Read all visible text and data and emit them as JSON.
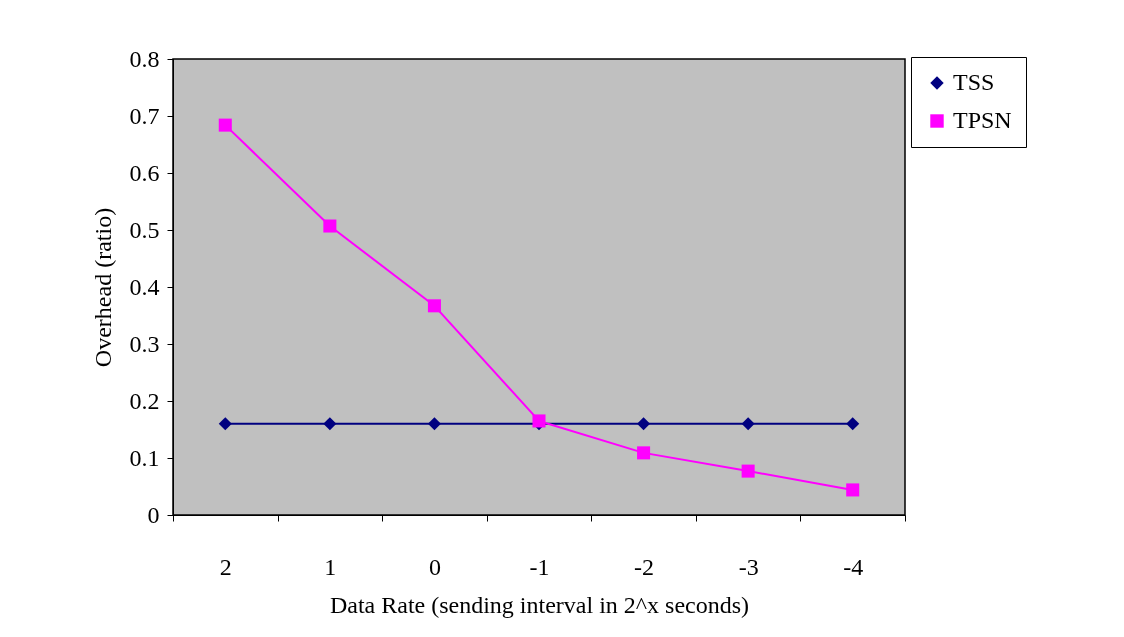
{
  "chart_data": {
    "type": "line",
    "xlabel": "Data Rate (sending interval in 2^x seconds)",
    "ylabel": "Overhead (ratio)",
    "categories": [
      "2",
      "1",
      "0",
      "-1",
      "-2",
      "-3",
      "-4"
    ],
    "series": [
      {
        "name": "TSS",
        "color": "#000080",
        "marker": "diamond",
        "values": [
          0.16,
          0.16,
          0.16,
          0.16,
          0.16,
          0.16,
          0.16
        ]
      },
      {
        "name": "TPSN",
        "color": "#ff00ff",
        "marker": "square",
        "values": [
          0.684,
          0.507,
          0.367,
          0.165,
          0.109,
          0.077,
          0.044
        ]
      }
    ],
    "ylim": [
      0,
      0.8
    ],
    "yticks": [
      0,
      0.1,
      0.2,
      0.3,
      0.4,
      0.5,
      0.6,
      0.7,
      0.8
    ],
    "grid": false,
    "legend": "top right"
  }
}
